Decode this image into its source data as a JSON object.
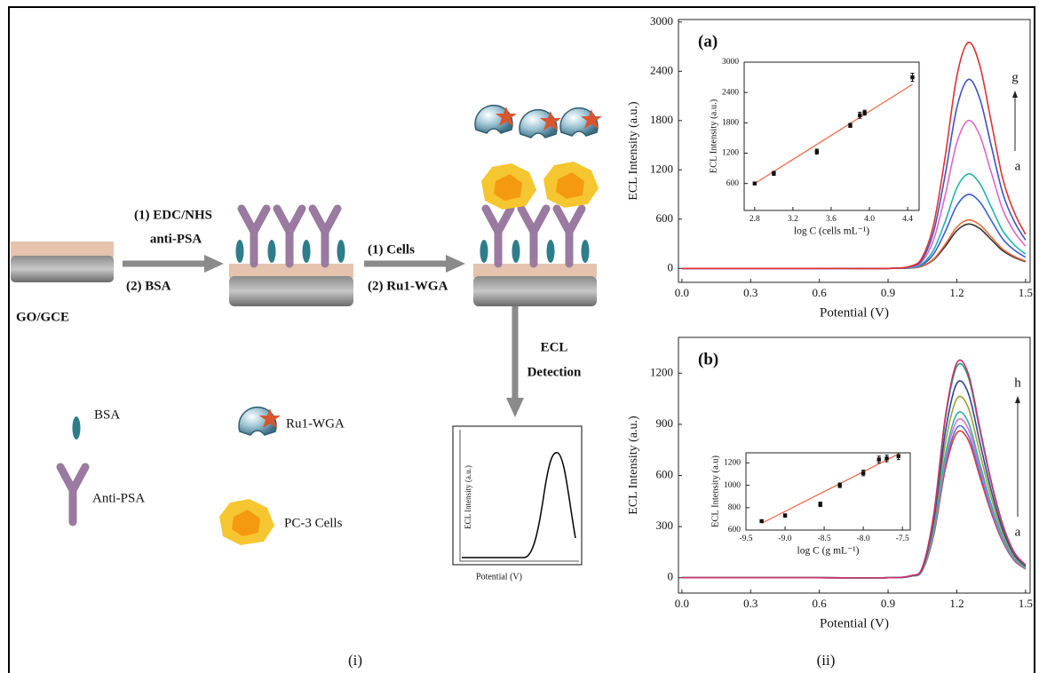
{
  "figure": {
    "panels": [
      "(i)",
      "(ii)"
    ]
  },
  "schematic": {
    "electrode": "GO/GCE",
    "step1": [
      "(1) EDC/NHS",
      "anti-PSA",
      "(2) BSA"
    ],
    "step2": [
      "(1) Cells",
      "(2) Ru1-WGA"
    ],
    "detection": [
      "ECL",
      "Detection"
    ],
    "legend": [
      "BSA",
      "Ru1-WGA",
      "Anti-PSA",
      "PC-3 Cells"
    ],
    "inset": {
      "y_label": "ECL Intensity (a.u.)",
      "x_label": "Potential (V)"
    }
  },
  "chart_data": [
    {
      "type": "line",
      "panel": "(a)",
      "x_label": "Potential (V)",
      "y_label": "ECL Intensity  (a.u.)",
      "x": [
        0,
        0.3,
        0.6,
        0.9,
        1.0,
        1.05,
        1.1,
        1.15,
        1.2,
        1.25,
        1.3,
        1.35,
        1.4,
        1.45,
        1.5
      ],
      "series": [
        {
          "color": "#333333",
          "values": [
            0,
            0,
            0,
            0,
            5,
            27,
            108,
            270,
            459,
            540,
            486,
            351,
            216,
            135,
            81
          ]
        },
        {
          "color": "#f06a3a",
          "values": [
            0,
            0,
            0,
            0,
            6,
            30,
            118,
            295,
            502,
            590,
            531,
            384,
            236,
            148,
            89
          ]
        },
        {
          "color": "#3b5bdb",
          "values": [
            0,
            0,
            0,
            0,
            9,
            45,
            180,
            450,
            765,
            900,
            810,
            585,
            360,
            225,
            135
          ]
        },
        {
          "color": "#20b2aa",
          "values": [
            0,
            0,
            0,
            0,
            12,
            58,
            230,
            575,
            978,
            1150,
            1035,
            748,
            460,
            288,
            173
          ]
        },
        {
          "color": "#e066c8",
          "values": [
            0,
            0,
            0,
            0,
            18,
            90,
            360,
            900,
            1530,
            1800,
            1620,
            1170,
            720,
            450,
            270
          ]
        },
        {
          "color": "#4050c8",
          "values": [
            0,
            0,
            0,
            0,
            23,
            115,
            460,
            1150,
            1955,
            2300,
            2070,
            1495,
            920,
            575,
            345
          ]
        },
        {
          "color": "#e03030",
          "values": [
            0,
            0,
            0,
            0,
            28,
            138,
            550,
            1375,
            2338,
            2750,
            2475,
            1788,
            1100,
            688,
            413
          ]
        }
      ],
      "xlim": [
        -0.015,
        1.52
      ],
      "ylim": [
        -170,
        3030
      ],
      "xticks": [
        {
          "value": 0,
          "label": "0.0"
        },
        0.3,
        0.6,
        0.9,
        1.2,
        1.5
      ],
      "yticks": [
        0,
        600,
        1200,
        1800,
        2400,
        3000
      ],
      "annotations": [
        "g",
        "a"
      ]
    },
    {
      "type": "scatter",
      "x_label": "log C (cells mL⁻¹)",
      "y_label": "ECL Intensity (a.u.)",
      "x": [
        2.8,
        3.0,
        3.45,
        3.8,
        3.9,
        3.95,
        4.45
      ],
      "values": [
        600,
        800,
        1230,
        1750,
        1950,
        2000,
        2700
      ],
      "errors": [
        20,
        40,
        50,
        40,
        60,
        50,
        80
      ],
      "fit": {
        "x": [
          2.8,
          4.45
        ],
        "y": [
          600,
          2560
        ]
      },
      "fit_color": "#f07050",
      "xlim": [
        2.69,
        4.52
      ],
      "ylim": [
        67,
        3000
      ],
      "xticks": [
        2.8,
        3.2,
        3.6,
        {
          "value": 4,
          "label": "4.0"
        },
        4.4
      ],
      "yticks": [
        600,
        1200,
        1800,
        2400,
        3000
      ]
    },
    {
      "type": "line",
      "panel": "(b)",
      "x_label": "Potential (V)",
      "y_label": "ECL Intensity  (a.u.)",
      "x": [
        0,
        0.3,
        0.6,
        0.9,
        1.0,
        1.05,
        1.1,
        1.15,
        1.2,
        1.25,
        1.3,
        1.35,
        1.4,
        1.45,
        1.5
      ],
      "series": [
        {
          "color": "#e03a3a",
          "values": [
            0,
            0,
            0,
            0,
            9,
            43,
            255,
            638,
            850,
            808,
            595,
            383,
            213,
            102,
            51
          ]
        },
        {
          "color": "#5a6fd8",
          "values": [
            0,
            0,
            0,
            0,
            9,
            44,
            264,
            660,
            880,
            836,
            616,
            396,
            220,
            106,
            53
          ]
        },
        {
          "color": "#e070c0",
          "values": [
            0,
            0,
            0,
            0,
            9,
            46,
            276,
            690,
            920,
            874,
            644,
            414,
            230,
            110,
            55
          ]
        },
        {
          "color": "#30b0b0",
          "values": [
            0,
            0,
            0,
            0,
            10,
            48,
            288,
            720,
            960,
            912,
            672,
            432,
            240,
            115,
            58
          ]
        },
        {
          "color": "#a0a030",
          "values": [
            0,
            0,
            0,
            0,
            11,
            53,
            315,
            788,
            1050,
            998,
            735,
            473,
            263,
            126,
            63
          ]
        },
        {
          "color": "#3040a0",
          "values": [
            0,
            0,
            0,
            0,
            11,
            57,
            342,
            855,
            1140,
            1083,
            798,
            513,
            285,
            137,
            68
          ]
        },
        {
          "color": "#20a070",
          "values": [
            0,
            0,
            0,
            0,
            12,
            62,
            372,
            930,
            1240,
            1178,
            868,
            558,
            310,
            149,
            74
          ]
        },
        {
          "color": "#d03070",
          "values": [
            0,
            0,
            0,
            0,
            13,
            63,
            378,
            945,
            1260,
            1197,
            882,
            567,
            315,
            151,
            76
          ]
        }
      ],
      "xlim": [
        -0.015,
        1.52
      ],
      "ylim": [
        -90,
        1410
      ],
      "xticks": [
        {
          "value": 0,
          "label": "0.0"
        },
        0.3,
        0.6,
        0.9,
        1.2,
        1.5
      ],
      "yticks": [
        0,
        300,
        600,
        900,
        1200
      ],
      "annotations": [
        "h",
        "a"
      ]
    },
    {
      "type": "scatter",
      "x_label": "log C (g mL⁻¹)",
      "y_label": "ECL Intensity (a.u)",
      "x": [
        -9.3,
        -9.0,
        -8.55,
        -8.3,
        -8.0,
        -7.8,
        -7.7,
        -7.55
      ],
      "values": [
        680,
        730,
        830,
        1000,
        1110,
        1230,
        1240,
        1260
      ],
      "errors": [
        10,
        15,
        20,
        20,
        25,
        30,
        30,
        30
      ],
      "fit": {
        "x": [
          -9.3,
          -7.55
        ],
        "y": [
          660,
          1280
        ]
      },
      "fit_color": "#f07050",
      "xlim": [
        -9.5,
        -7.4
      ],
      "ylim": [
        600,
        1290
      ],
      "xticks": [
        -9.5,
        {
          "value": -9,
          "label": "-9.0"
        },
        -8.5,
        {
          "value": -8,
          "label": "-8.0"
        },
        -7.5
      ],
      "yticks": [
        600,
        800,
        1000,
        1200
      ]
    }
  ]
}
